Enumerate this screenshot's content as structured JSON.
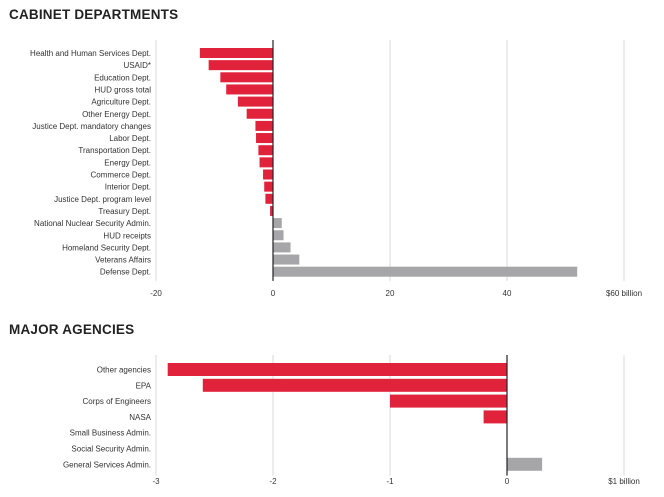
{
  "section1": {
    "title": "CABINET DEPARTMENTS"
  },
  "section2": {
    "title": "MAJOR AGENCIES"
  },
  "colors": {
    "negative": "#e0223a",
    "positive": "#a6a6a8",
    "grid": "#d9d9d9",
    "zero": "#222222"
  },
  "chart_data": [
    {
      "type": "bar",
      "orientation": "horizontal",
      "title": "CABINET DEPARTMENTS",
      "categories": [
        "Health and Human Services Dept.",
        "USAID*",
        "Education Dept.",
        "HUD gross total",
        "Agriculture Dept.",
        "Other Energy Dept.",
        "Justice Dept. mandatory changes",
        "Labor Dept.",
        "Transportation Dept.",
        "Energy Dept.",
        "Commerce Dept.",
        "Interior Dept.",
        "Justice Dept. program level",
        "Treasury Dept.",
        "National Nuclear Security Admin.",
        "HUD receipts",
        "Homeland Security Dept.",
        "Veterans Affairs",
        "Defense Dept."
      ],
      "values": [
        -12.5,
        -11,
        -9,
        -8,
        -6,
        -4.5,
        -3,
        -2.9,
        -2.5,
        -2.3,
        -1.7,
        -1.5,
        -1.3,
        -0.5,
        1.5,
        1.8,
        3,
        4.5,
        52
      ],
      "xlim": [
        -20,
        60
      ],
      "xticks": [
        "-20",
        "0",
        "20",
        "40",
        "$60 billion"
      ],
      "xtick_values": [
        -20,
        0,
        20,
        40,
        60
      ],
      "grid": true
    },
    {
      "type": "bar",
      "orientation": "horizontal",
      "title": "MAJOR AGENCIES",
      "categories": [
        "Other agencies",
        "EPA",
        "Corps of Engineers",
        "NASA",
        "Small Business Admin.",
        "Social Security Admin.",
        "General Services Admin."
      ],
      "values": [
        -2.9,
        -2.6,
        -1.0,
        -0.2,
        0,
        0,
        0.3
      ],
      "xlim": [
        -3,
        1
      ],
      "xticks": [
        "-3",
        "-2",
        "-1",
        "0",
        "$1 billion"
      ],
      "xtick_values": [
        -3,
        -2,
        -1,
        0,
        1
      ],
      "grid": true
    }
  ]
}
